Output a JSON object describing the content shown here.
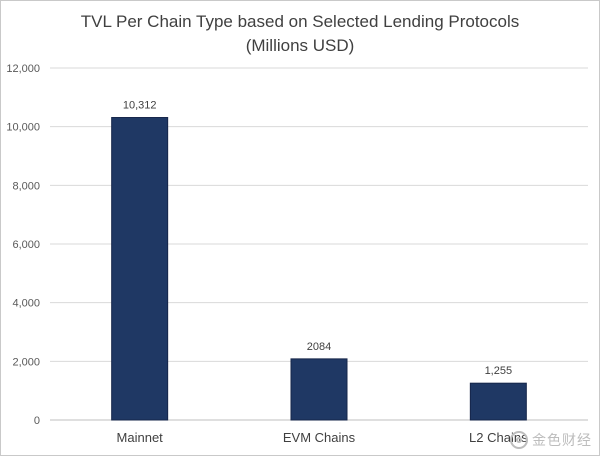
{
  "chart_data": {
    "type": "bar",
    "title_line1": "TVL Per Chain Type based on Selected Lending Protocols",
    "title_line2": "(Millions USD)",
    "categories": [
      "Mainnet",
      "EVM Chains",
      "L2 Chains"
    ],
    "values": [
      10312,
      2084,
      1255
    ],
    "data_labels": [
      "10,312",
      "2084",
      "1,255"
    ],
    "ylim": [
      0,
      12000
    ],
    "y_ticks": [
      0,
      2000,
      4000,
      6000,
      8000,
      10000,
      12000
    ],
    "y_tick_labels": [
      "0",
      "2,000",
      "4,000",
      "6,000",
      "8,000",
      "10,000",
      "12,000"
    ],
    "grid": true,
    "xlabel": "",
    "ylabel": "",
    "bar_color": "#1f3864",
    "grid_color": "#d9d9d9"
  },
  "watermark": {
    "text": "金色财经",
    "icon": "coin-logo-icon"
  }
}
